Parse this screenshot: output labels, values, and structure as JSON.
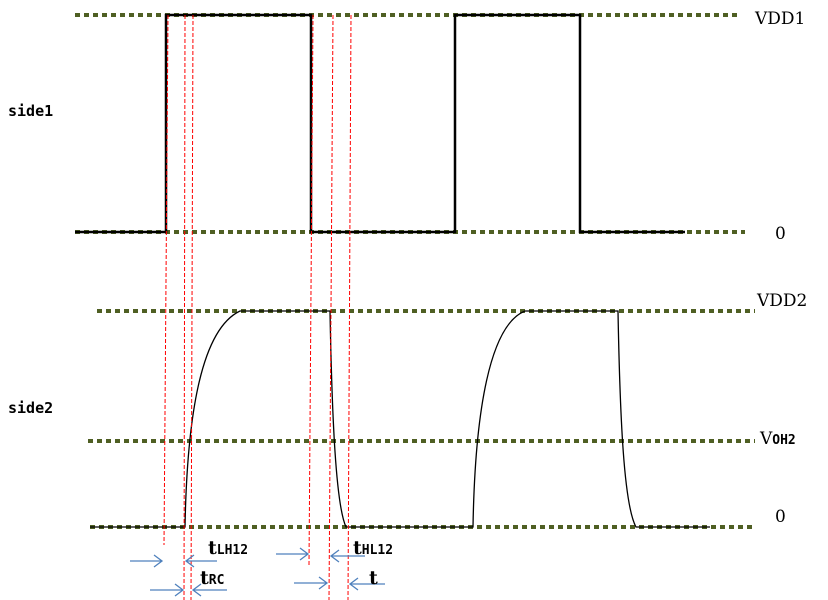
{
  "signals": [
    {
      "name": "side1",
      "high_label": "VDD1",
      "low_label": "0"
    },
    {
      "name": "side2",
      "high_label": "VDD2",
      "mid_label_main": "V",
      "mid_label_sub": "OH2",
      "low_label": "0"
    }
  ],
  "timings": [
    {
      "prefix": "t",
      "sub": "LH12"
    },
    {
      "prefix": "t",
      "sub": "RC"
    },
    {
      "prefix": "t",
      "sub": "HL12"
    },
    {
      "prefix": "t",
      "sub": ""
    }
  ],
  "colors": {
    "level_lines": "#4f5f23",
    "waveform": "#000000",
    "markers": "#ff0000",
    "arrows": "#4f81bd"
  }
}
